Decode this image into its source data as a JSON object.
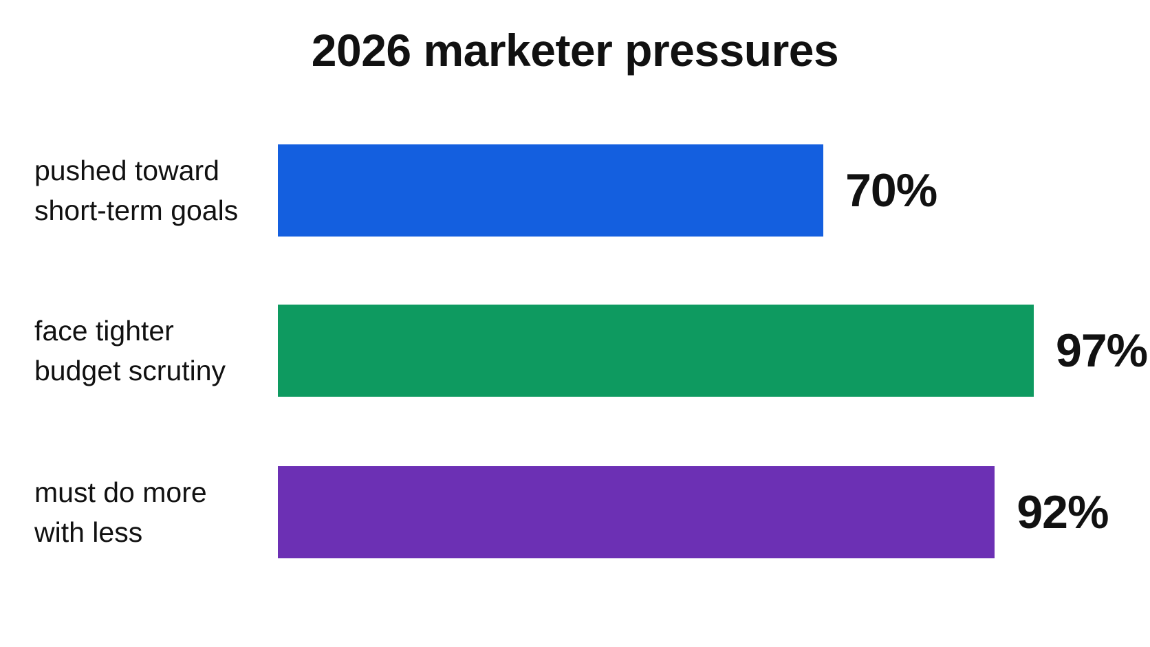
{
  "chart_data": {
    "type": "bar",
    "orientation": "horizontal",
    "title": "2026 marketer pressures",
    "xlabel": "",
    "ylabel": "",
    "xlim": [
      0,
      100
    ],
    "grid": false,
    "categories": [
      "pushed toward\nshort-term goals",
      "face tighter\nbudget scrutiny",
      "must do more\nwith less"
    ],
    "values": [
      70,
      97,
      92
    ],
    "value_labels": [
      "70%",
      "97%",
      "92%"
    ],
    "colors": [
      "#145FDF",
      "#0E9A60",
      "#6C30B4"
    ]
  }
}
